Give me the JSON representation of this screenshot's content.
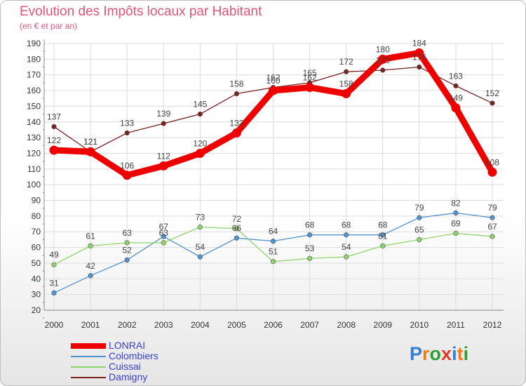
{
  "header": {
    "title": "Evolution des Impôts locaux par Habitant",
    "subtitle": "(en € et par an)"
  },
  "logo": {
    "text": "Proxiti",
    "letters": [
      "P",
      "r",
      "o",
      "x",
      "i",
      "t",
      "i"
    ],
    "colors": [
      "#2f7fd6",
      "#f07c17",
      "#2f9f35",
      "#e23b2b",
      "#2f7fd6",
      "#f07c17",
      "#2f9f35"
    ]
  },
  "chart_data": {
    "type": "line",
    "x": [
      "2000",
      "2001",
      "2002",
      "2003",
      "2004",
      "2005",
      "2006",
      "2007",
      "2008",
      "2009",
      "2010",
      "2011",
      "2012"
    ],
    "ylim": [
      20,
      190
    ],
    "yticks": [
      20,
      30,
      40,
      50,
      60,
      70,
      80,
      90,
      100,
      110,
      120,
      130,
      140,
      150,
      160,
      170,
      180,
      190
    ],
    "grid": true,
    "legend_position": "bottom-left",
    "series": [
      {
        "name": "LONRAI",
        "color": "#ee0000",
        "values": [
          122,
          121,
          106,
          112,
          120,
          133,
          160,
          162,
          158,
          180,
          184,
          149,
          108
        ]
      },
      {
        "name": "Colombiers",
        "color": "#4f93cf",
        "values": [
          31,
          42,
          52,
          67,
          54,
          66,
          64,
          68,
          68,
          68,
          79,
          82,
          79
        ]
      },
      {
        "name": "Cuissai",
        "color": "#8ed46a",
        "values": [
          49,
          61,
          63,
          63,
          73,
          72,
          51,
          53,
          54,
          61,
          65,
          69,
          67
        ]
      },
      {
        "name": "Damigny",
        "color": "#7a2020",
        "values": [
          137,
          121,
          133,
          139,
          145,
          158,
          162,
          165,
          172,
          173,
          175,
          163,
          152
        ]
      }
    ]
  }
}
